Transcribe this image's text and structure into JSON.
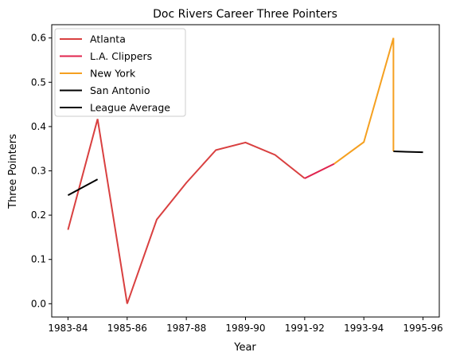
{
  "chart_data": {
    "type": "line",
    "title": "Doc Rivers Career Three Pointers",
    "xlabel": "Year",
    "ylabel": "Three Pointers",
    "x_tick_labels": [
      "1983-84",
      "1985-86",
      "1987-88",
      "1989-90",
      "1991-92",
      "1993-94",
      "1995-96"
    ],
    "x_tick_values": [
      0,
      2,
      4,
      6,
      8,
      10,
      12
    ],
    "y_ticks": [
      0.0,
      0.1,
      0.2,
      0.3,
      0.4,
      0.5,
      0.6
    ],
    "y_tick_labels": [
      "0.0",
      "0.1",
      "0.2",
      "0.3",
      "0.4",
      "0.5",
      "0.6"
    ],
    "xlim": [
      -0.55,
      12.55
    ],
    "ylim": [
      -0.03,
      0.63
    ],
    "grid": false,
    "legend_position": "top-left",
    "series": [
      {
        "name": "Atlanta",
        "color": "#d94040",
        "x": [
          0,
          1,
          2,
          3,
          4,
          5,
          6,
          7,
          8
        ],
        "y": [
          0.167,
          0.417,
          0.0,
          0.19,
          0.273,
          0.347,
          0.364,
          0.336,
          0.283
        ]
      },
      {
        "name": "L.A. Clippers",
        "color": "#e0244e",
        "x": [
          8,
          9
        ],
        "y": [
          0.283,
          0.316
        ]
      },
      {
        "name": "New York",
        "color": "#f5a020",
        "x": [
          9,
          10,
          11,
          11
        ],
        "y": [
          0.316,
          0.365,
          0.6,
          0.344
        ]
      },
      {
        "name": "San Antonio",
        "color": "#000000",
        "x": [
          11,
          12
        ],
        "y": [
          0.344,
          0.342
        ]
      },
      {
        "name": "League Average",
        "color": "#000000",
        "x": [
          0,
          1
        ],
        "y": [
          0.245,
          0.281
        ]
      }
    ]
  }
}
